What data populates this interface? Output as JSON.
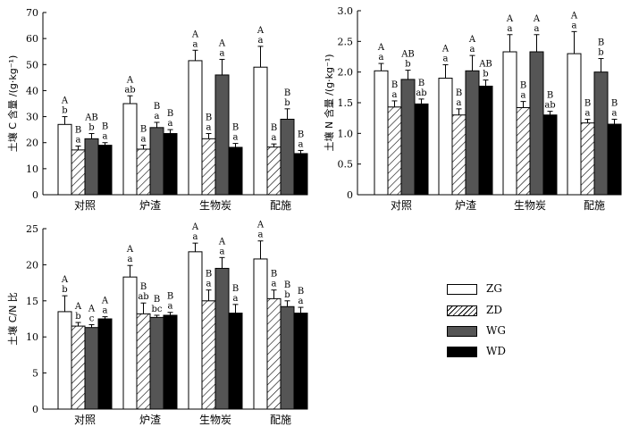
{
  "legend": [
    "ZG",
    "ZD",
    "WG",
    "WD"
  ],
  "chart_data": [
    {
      "type": "bar",
      "ylabel": "土壤 C 含量 /(g·kg⁻¹)",
      "ylim": [
        0,
        70
      ],
      "yticks": [
        0,
        10,
        20,
        30,
        40,
        50,
        60,
        70
      ],
      "categories": [
        "对照",
        "炉渣",
        "生物炭",
        "配施"
      ],
      "series": [
        {
          "name": "ZG",
          "values": [
            27,
            35,
            51.5,
            49
          ],
          "errors": [
            3,
            3,
            4,
            8
          ],
          "sig_upper": [
            "A",
            "A",
            "A",
            "A"
          ],
          "sig_lower": [
            "b",
            "ab",
            "a",
            "a"
          ]
        },
        {
          "name": "ZD",
          "values": [
            17.2,
            17.5,
            21.5,
            18.3
          ],
          "errors": [
            1.5,
            1.5,
            2,
            1.2
          ],
          "sig_upper": [
            "B",
            "B",
            "B",
            "B"
          ],
          "sig_lower": [
            "a",
            "a",
            "a",
            "a"
          ]
        },
        {
          "name": "WG",
          "values": [
            21.5,
            25.8,
            46,
            29
          ],
          "errors": [
            2,
            2,
            6,
            4
          ],
          "sig_upper": [
            "AB",
            "B",
            "A",
            "B"
          ],
          "sig_lower": [
            "b",
            "a",
            "a",
            "b"
          ]
        },
        {
          "name": "WD",
          "values": [
            19,
            23.5,
            18.2,
            15.8
          ],
          "errors": [
            1,
            1.5,
            1.5,
            1.2
          ],
          "sig_upper": [
            "B",
            "B",
            "B",
            "B"
          ],
          "sig_lower": [
            "a",
            "a",
            "a",
            "a"
          ]
        }
      ]
    },
    {
      "type": "bar",
      "ylabel": "土壤 N 含量 /(g·kg⁻¹)",
      "ylim": [
        0,
        3.0
      ],
      "yticks": [
        0,
        0.5,
        1.0,
        1.5,
        2.0,
        2.5,
        3.0
      ],
      "ytick_labels": [
        "0",
        "0.5",
        "1.0",
        "1.5",
        "2.0",
        "2.5",
        "3.0"
      ],
      "categories": [
        "对照",
        "炉渣",
        "生物炭",
        "配施"
      ],
      "series": [
        {
          "name": "ZG",
          "values": [
            2.02,
            1.9,
            2.33,
            2.3
          ],
          "errors": [
            0.12,
            0.22,
            0.28,
            0.36
          ],
          "sig_upper": [
            "A",
            "A",
            "A",
            "A"
          ],
          "sig_lower": [
            "a",
            "a",
            "a",
            "a"
          ]
        },
        {
          "name": "ZD",
          "values": [
            1.43,
            1.3,
            1.42,
            1.17
          ],
          "errors": [
            0.1,
            0.1,
            0.1,
            0.06
          ],
          "sig_upper": [
            "B",
            "B",
            "B",
            "B"
          ],
          "sig_lower": [
            "a",
            "a",
            "a",
            "a"
          ]
        },
        {
          "name": "WG",
          "values": [
            1.88,
            2.02,
            2.33,
            2.0
          ],
          "errors": [
            0.15,
            0.25,
            0.28,
            0.22
          ],
          "sig_upper": [
            "AB",
            "A",
            "A",
            "B"
          ],
          "sig_lower": [
            "b",
            "a",
            "a",
            "b"
          ]
        },
        {
          "name": "WD",
          "values": [
            1.48,
            1.77,
            1.3,
            1.15
          ],
          "errors": [
            0.08,
            0.1,
            0.06,
            0.08
          ],
          "sig_upper": [
            "B",
            "AB",
            "B",
            "B"
          ],
          "sig_lower": [
            "ab",
            "b",
            "ab",
            "a"
          ]
        }
      ]
    },
    {
      "type": "bar",
      "ylabel": "土壤 C/N 比",
      "ylim": [
        0,
        25
      ],
      "yticks": [
        0,
        5,
        10,
        15,
        20,
        25
      ],
      "categories": [
        "对照",
        "炉渣",
        "生物炭",
        "配施"
      ],
      "series": [
        {
          "name": "ZG",
          "values": [
            13.5,
            18.3,
            21.8,
            20.8
          ],
          "errors": [
            2.2,
            1.6,
            1.2,
            2.5
          ],
          "sig_upper": [
            "A",
            "A",
            "A",
            "A"
          ],
          "sig_lower": [
            "b",
            "a",
            "a",
            "a"
          ]
        },
        {
          "name": "ZD",
          "values": [
            11.5,
            13.2,
            15.0,
            15.3
          ],
          "errors": [
            0.5,
            1.5,
            1.5,
            1.2
          ],
          "sig_upper": [
            "A",
            "B",
            "B",
            "B"
          ],
          "sig_lower": [
            "b",
            "ab",
            "a",
            "a"
          ]
        },
        {
          "name": "WG",
          "values": [
            11.3,
            12.7,
            19.5,
            14.2
          ],
          "errors": [
            0.4,
            0.3,
            1.5,
            0.8
          ],
          "sig_upper": [
            "A",
            "B",
            "A",
            "B"
          ],
          "sig_lower": [
            "c",
            "bc",
            "a",
            "b"
          ]
        },
        {
          "name": "WD",
          "values": [
            12.5,
            13.0,
            13.3,
            13.3
          ],
          "errors": [
            0.3,
            0.4,
            1.2,
            0.8
          ],
          "sig_upper": [
            "A",
            "B",
            "B",
            "B"
          ],
          "sig_lower": [
            "a",
            "a",
            "a",
            "a"
          ]
        }
      ]
    }
  ]
}
